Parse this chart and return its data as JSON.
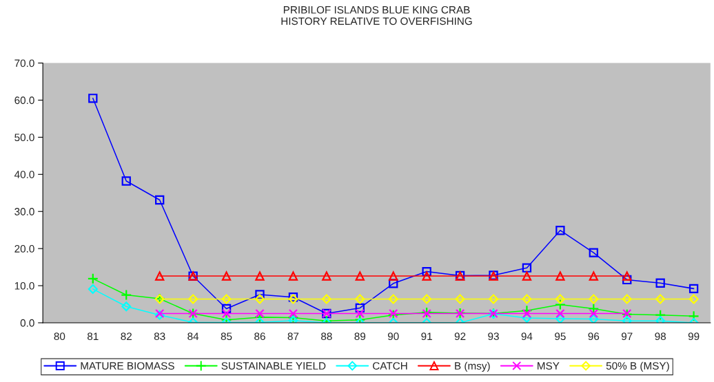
{
  "chart_data": {
    "type": "line",
    "title": "PRIBILOF ISLANDS BLUE KING CRAB\nHISTORY RELATIVE TO OVERFISHING",
    "categories": [
      "80",
      "81",
      "82",
      "83",
      "84",
      "85",
      "86",
      "87",
      "88",
      "89",
      "90",
      "91",
      "92",
      "93",
      "94",
      "95",
      "96",
      "97",
      "98",
      "99"
    ],
    "series": [
      {
        "name": "MATURE BIOMASS",
        "color": "#0000ff",
        "marker": "square",
        "values": [
          null,
          60.5,
          38.2,
          33.1,
          12.6,
          3.8,
          7.6,
          6.9,
          2.5,
          4.0,
          10.6,
          13.8,
          12.7,
          12.8,
          14.8,
          24.9,
          18.9,
          11.6,
          10.7,
          9.2
        ]
      },
      {
        "name": "SUSTAINABLE YIELD",
        "color": "#00ff00",
        "marker": "plus",
        "values": [
          null,
          11.9,
          7.5,
          6.5,
          2.5,
          0.8,
          1.5,
          1.4,
          0.5,
          0.8,
          2.1,
          2.8,
          2.6,
          2.5,
          3.3,
          4.9,
          3.8,
          2.3,
          2.1,
          1.8
        ]
      },
      {
        "name": "CATCH",
        "color": "#00ffff",
        "marker": "diamond",
        "values": [
          null,
          9.1,
          4.4,
          2.1,
          0.1,
          0.1,
          0.1,
          0.6,
          0.0,
          0.0,
          0.0,
          0.0,
          0.0,
          2.4,
          1.3,
          1.1,
          1.0,
          0.5,
          0.5,
          0.0
        ]
      },
      {
        "name": "B (msy)",
        "color": "#ff0000",
        "marker": "triangle",
        "values": [
          null,
          null,
          null,
          12.6,
          12.6,
          12.6,
          12.6,
          12.6,
          12.6,
          12.6,
          12.6,
          12.6,
          12.6,
          12.6,
          12.6,
          12.6,
          12.6,
          12.6,
          null,
          null
        ]
      },
      {
        "name": "MSY",
        "color": "#ff00ff",
        "marker": "cross",
        "values": [
          null,
          null,
          null,
          2.5,
          2.5,
          2.5,
          2.5,
          2.5,
          2.5,
          2.5,
          2.5,
          2.5,
          2.5,
          2.5,
          2.5,
          2.5,
          2.5,
          2.5,
          null,
          null
        ]
      },
      {
        "name": "50% B (MSY)",
        "color": "#ffff00",
        "marker": "diamond",
        "values": [
          null,
          null,
          null,
          6.4,
          6.4,
          6.4,
          6.4,
          6.4,
          6.4,
          6.4,
          6.4,
          6.4,
          6.4,
          6.4,
          6.4,
          6.4,
          6.4,
          6.4,
          6.4,
          6.4
        ]
      }
    ],
    "ylim": [
      0,
      70
    ],
    "yticks": [
      {
        "value": 0,
        "label": "0.0"
      },
      {
        "value": 10,
        "label": "10.0"
      },
      {
        "value": 20,
        "label": "20.0"
      },
      {
        "value": 30,
        "label": "30.0"
      },
      {
        "value": 40,
        "label": "40.0"
      },
      {
        "value": 50,
        "label": "50.0"
      },
      {
        "value": 60,
        "label": "60.0"
      },
      {
        "value": 70,
        "label": "70.0"
      }
    ],
    "grid": false,
    "legend": "bottom",
    "line_style": "solid"
  }
}
